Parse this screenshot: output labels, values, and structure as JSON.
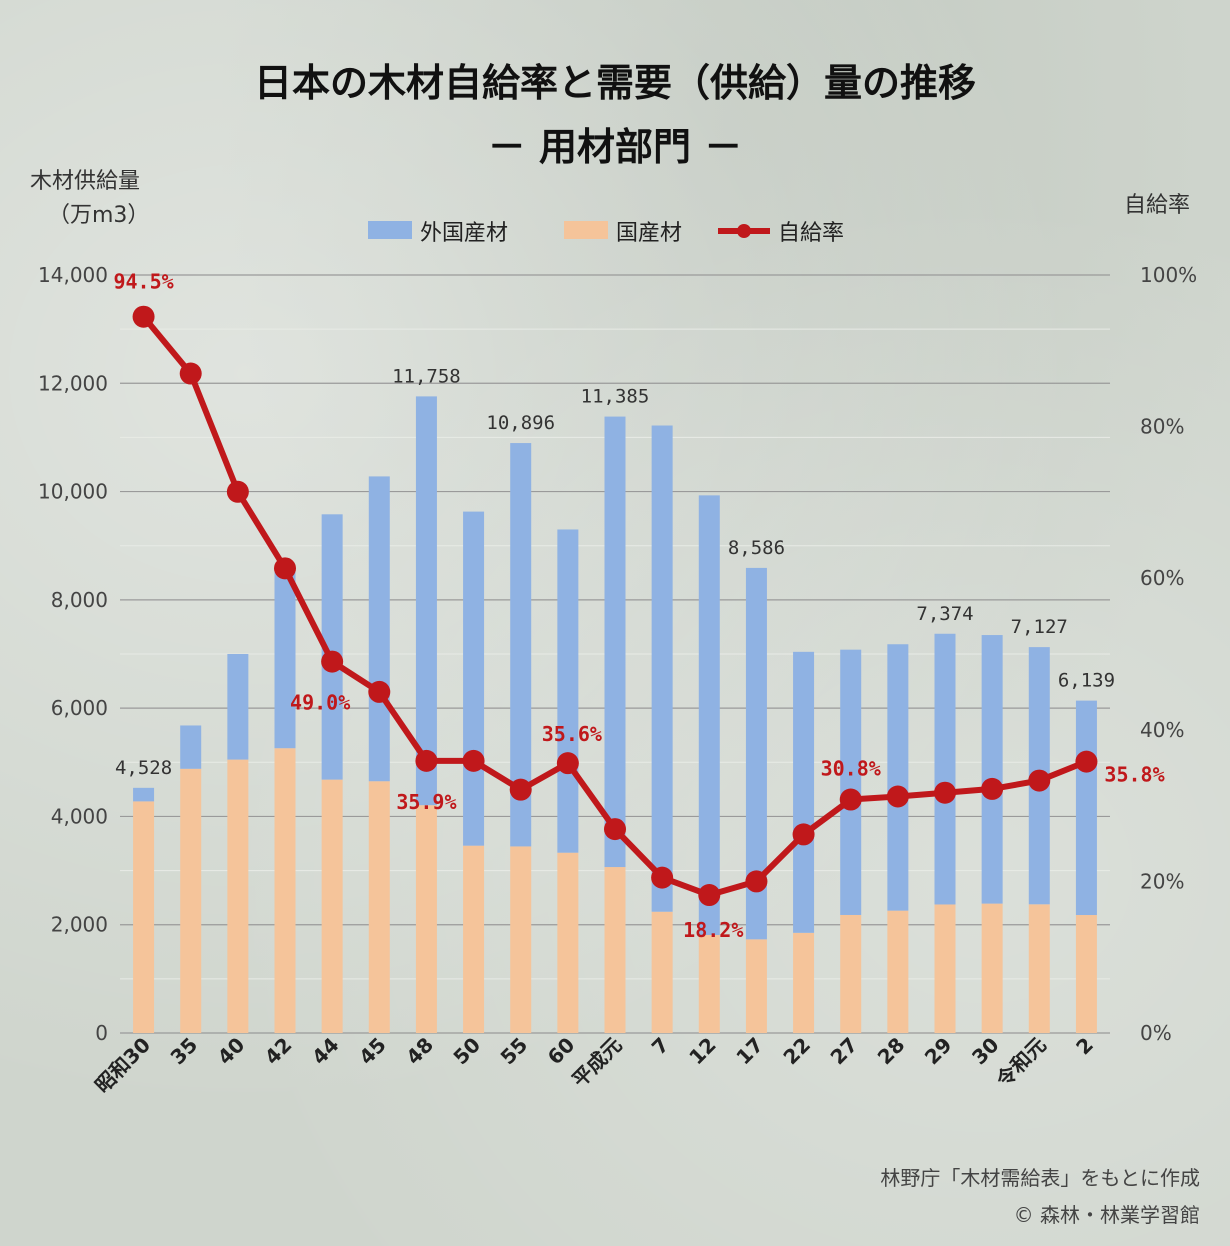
{
  "title_line1": "日本の木材自給率と需要（供給）量の推移",
  "title_line2": "－ 用材部門 －",
  "left_axis_title_line1": "木材供給量",
  "left_axis_title_line2": "（万m3）",
  "right_axis_title": "自給率",
  "source_line1": "林野庁「木材需給表」をもとに作成",
  "source_line2": "© 森林・林業学習館",
  "colors": {
    "foreign": "#8fb2e3",
    "domestic": "#f5c49a",
    "rate": "#c0181b"
  },
  "chart_data": {
    "type": "bar",
    "stacked": true,
    "categories": [
      "昭和30",
      "35",
      "40",
      "42",
      "44",
      "45",
      "48",
      "50",
      "55",
      "60",
      "平成元",
      "7",
      "12",
      "17",
      "22",
      "27",
      "28",
      "29",
      "30",
      "令和元",
      "2"
    ],
    "series": [
      {
        "name": "外国産材",
        "axis": "left",
        "values": [
          250,
          800,
          1950,
          3350,
          4900,
          5630,
          7550,
          6170,
          7450,
          5970,
          8320,
          8980,
          8120,
          6860,
          5190,
          4900,
          4920,
          5000,
          4960,
          4750,
          3960
        ]
      },
      {
        "name": "国産材",
        "axis": "left",
        "values": [
          4278,
          4880,
          5050,
          5260,
          4680,
          4650,
          4208,
          3460,
          3446,
          3330,
          3065,
          2240,
          1810,
          1730,
          1850,
          2180,
          2260,
          2374,
          2390,
          2377,
          2179
        ]
      },
      {
        "name": "自給率",
        "type": "line",
        "axis": "right",
        "values": [
          94.5,
          87,
          71.4,
          61.3,
          49.0,
          45,
          35.9,
          35.9,
          32.1,
          35.6,
          26.9,
          20.5,
          18.2,
          20.0,
          26.2,
          30.8,
          31.2,
          31.7,
          32.2,
          33.3,
          35.8
        ]
      }
    ],
    "total_labels": [
      {
        "index": 0,
        "text": "4,528"
      },
      {
        "index": 6,
        "text": "11,758"
      },
      {
        "index": 8,
        "text": "10,896"
      },
      {
        "index": 10,
        "text": "11,385"
      },
      {
        "index": 13,
        "text": "8,586"
      },
      {
        "index": 17,
        "text": "7,374"
      },
      {
        "index": 19,
        "text": "7,127"
      },
      {
        "index": 20,
        "text": "6,139"
      }
    ],
    "rate_labels": [
      {
        "index": 0,
        "text": "94.5%"
      },
      {
        "index": 4,
        "text": "49.0%"
      },
      {
        "index": 6,
        "text": "35.9%"
      },
      {
        "index": 9,
        "text": "35.6%"
      },
      {
        "index": 12,
        "text": "18.2%"
      },
      {
        "index": 15,
        "text": "30.8%"
      },
      {
        "index": 20,
        "text": "35.8%"
      }
    ],
    "left_axis": {
      "min": 0,
      "max": 14000,
      "ticks": [
        "0",
        "2,000",
        "4,000",
        "6,000",
        "8,000",
        "10,000",
        "12,000",
        "14,000"
      ]
    },
    "right_axis": {
      "min": 0,
      "max": 100,
      "ticks": [
        "0%",
        "20%",
        "40%",
        "60%",
        "80%",
        "100%"
      ]
    },
    "grid": true,
    "legend_position": "top-center"
  }
}
